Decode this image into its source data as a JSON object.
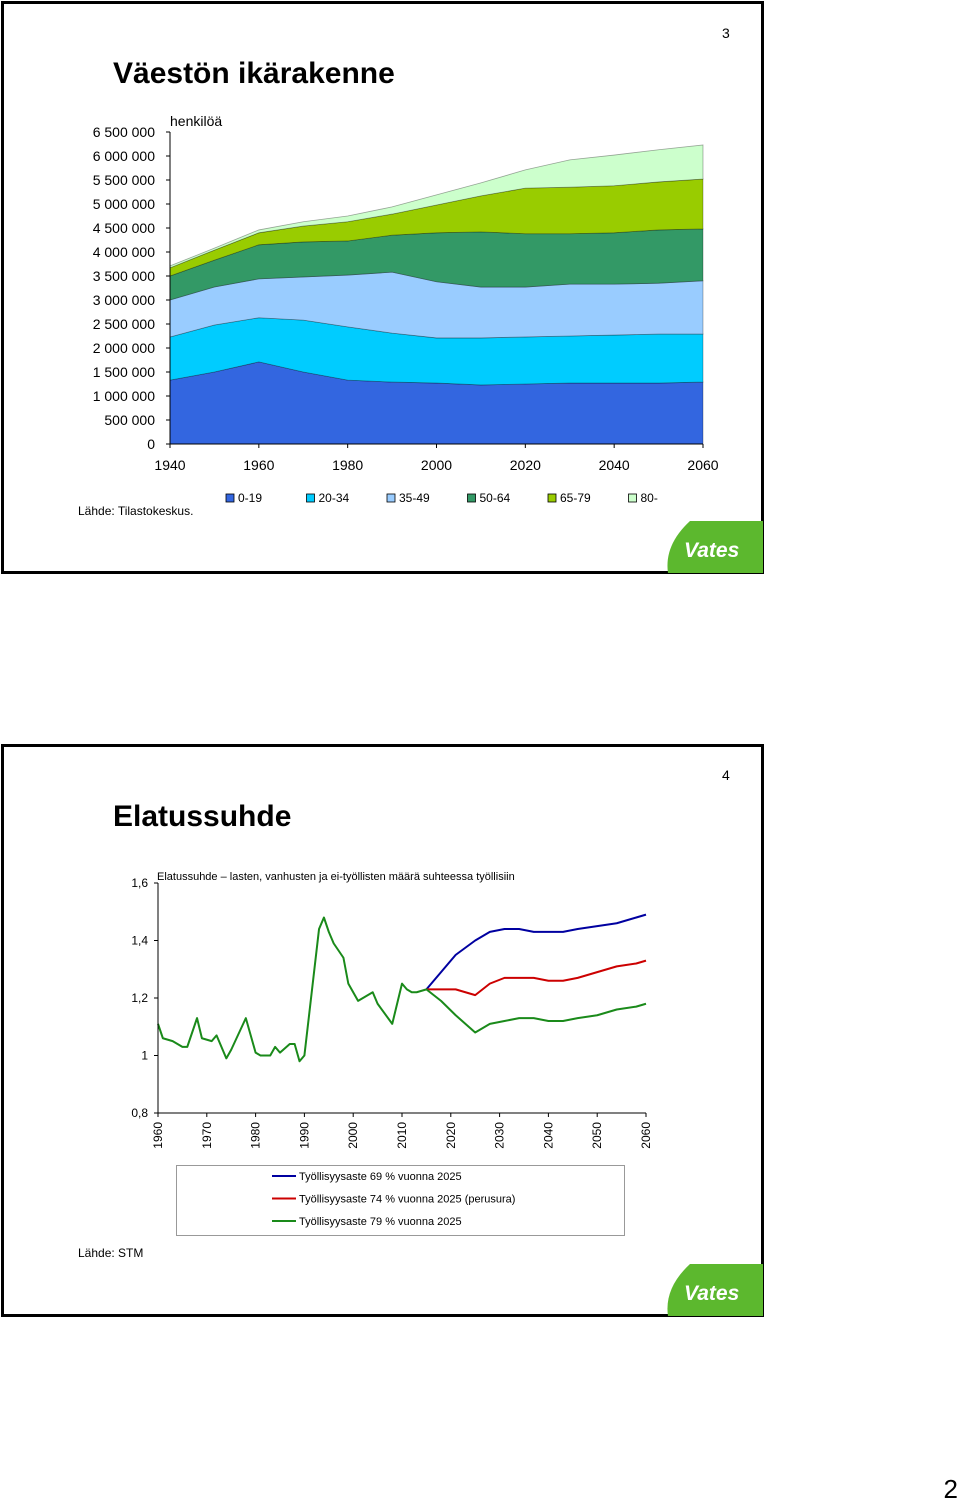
{
  "slides": [
    {
      "number": "3",
      "title": "Väestön ikärakenne",
      "source": "Lähde: Tilastokeskus."
    },
    {
      "number": "4",
      "title": "Elatussuhde",
      "source": "Lähde: STM"
    }
  ],
  "logo_text": "Vates",
  "page_number": "2",
  "chart_data": [
    {
      "type": "area",
      "stacked": true,
      "y_label": "henkilöä",
      "x": [
        1940,
        1950,
        1960,
        1970,
        1980,
        1990,
        2000,
        2010,
        2020,
        2030,
        2040,
        2050,
        2060
      ],
      "xlim": [
        1940,
        2060
      ],
      "xticks": [
        1940,
        1960,
        1980,
        2000,
        2020,
        2040,
        2060
      ],
      "ylim": [
        0,
        6500000
      ],
      "yticks": [
        0,
        {
          "value": 500000,
          "label": "500 000"
        },
        {
          "value": 1000000,
          "label": "1 000 000"
        },
        {
          "value": 1500000,
          "label": "1 500 000"
        },
        {
          "value": 2000000,
          "label": "2 000 000"
        },
        {
          "value": 2500000,
          "label": "2 500 000"
        },
        {
          "value": 3000000,
          "label": "3 000 000"
        },
        {
          "value": 3500000,
          "label": "3 500 000"
        },
        {
          "value": 4000000,
          "label": "4 000 000"
        },
        {
          "value": 4500000,
          "label": "4 500 000"
        },
        {
          "value": 5000000,
          "label": "5 000 000"
        },
        {
          "value": 5500000,
          "label": "5 500 000"
        },
        {
          "value": 6000000,
          "label": "6 000 000"
        },
        {
          "value": 6500000,
          "label": "6 500 000"
        }
      ],
      "grid": false,
      "legend": "bottom",
      "series": [
        {
          "name": "0-19",
          "color": "#3366e0",
          "values": [
            1330000,
            1500000,
            1710000,
            1500000,
            1330000,
            1290000,
            1270000,
            1230000,
            1250000,
            1270000,
            1270000,
            1270000,
            1290000
          ]
        },
        {
          "name": "20-34",
          "color": "#00ccff",
          "values": [
            900000,
            980000,
            920000,
            1080000,
            1110000,
            1020000,
            940000,
            980000,
            980000,
            980000,
            1000000,
            1020000,
            1000000
          ]
        },
        {
          "name": "35-49",
          "color": "#99ccff",
          "values": [
            770000,
            790000,
            810000,
            900000,
            1080000,
            1270000,
            1170000,
            1060000,
            1040000,
            1080000,
            1060000,
            1060000,
            1110000
          ]
        },
        {
          "name": "50-64",
          "color": "#339966",
          "values": [
            500000,
            560000,
            710000,
            730000,
            710000,
            770000,
            1020000,
            1150000,
            1110000,
            1050000,
            1070000,
            1110000,
            1080000
          ]
        },
        {
          "name": "65-79",
          "color": "#99cc00",
          "values": [
            170000,
            210000,
            250000,
            330000,
            400000,
            440000,
            580000,
            750000,
            950000,
            970000,
            980000,
            1000000,
            1040000
          ]
        },
        {
          "name": "80-",
          "color": "#ccffcc",
          "values": [
            40000,
            40000,
            60000,
            90000,
            120000,
            150000,
            210000,
            270000,
            380000,
            570000,
            640000,
            670000,
            710000
          ]
        }
      ]
    },
    {
      "type": "line",
      "title": "Elatussuhde – lasten, vanhusten ja ei-työllisten määrä suhteessa työllisiin",
      "x": [
        1960,
        1961,
        1963,
        1965,
        1966,
        1968,
        1969,
        1971,
        1972,
        1974,
        1975,
        1978,
        1979,
        1980,
        1981,
        1983,
        1984,
        1985,
        1987,
        1988,
        1989,
        1990,
        1993,
        1994,
        1995,
        1996,
        1998,
        1999,
        2001,
        2002,
        2004,
        2005,
        2008,
        2010,
        2011,
        2012,
        2013,
        2015,
        2018,
        2021,
        2025,
        2028,
        2031,
        2034,
        2037,
        2040,
        2043,
        2046,
        2050,
        2054,
        2058,
        2060
      ],
      "xlim": [
        1960,
        2060
      ],
      "xticks": [
        1960,
        1970,
        1980,
        1990,
        2000,
        2010,
        2020,
        2030,
        2040,
        2050,
        2060
      ],
      "ylim": [
        0.8,
        1.6
      ],
      "yticks": [
        {
          "value": 0.8,
          "label": "0,8"
        },
        1,
        {
          "value": 1.2,
          "label": "1,2"
        },
        {
          "value": 1.4,
          "label": "1,4"
        },
        {
          "value": 1.6,
          "label": "1,6"
        }
      ],
      "grid": false,
      "legend": "bottom",
      "series": [
        {
          "name": "Työllisyysaste 69 % vuonna 2025",
          "color": "#0000a0",
          "values": [
            null,
            null,
            null,
            null,
            null,
            null,
            null,
            null,
            null,
            null,
            null,
            null,
            null,
            null,
            null,
            null,
            null,
            null,
            null,
            null,
            null,
            null,
            null,
            null,
            null,
            null,
            null,
            null,
            null,
            null,
            null,
            null,
            null,
            null,
            null,
            null,
            null,
            1.23,
            1.29,
            1.35,
            1.4,
            1.43,
            1.44,
            1.44,
            1.43,
            1.43,
            1.43,
            1.44,
            1.45,
            1.46,
            1.48,
            1.49
          ]
        },
        {
          "name": "Työllisyysaste 74 % vuonna 2025 (perusura)",
          "color": "#cc0000",
          "values": [
            null,
            null,
            null,
            null,
            null,
            null,
            null,
            null,
            null,
            null,
            null,
            null,
            null,
            null,
            null,
            null,
            null,
            null,
            null,
            null,
            null,
            null,
            null,
            null,
            null,
            null,
            null,
            null,
            null,
            null,
            null,
            null,
            null,
            null,
            null,
            null,
            null,
            1.23,
            1.23,
            1.23,
            1.21,
            1.25,
            1.27,
            1.27,
            1.27,
            1.26,
            1.26,
            1.27,
            1.29,
            1.31,
            1.32,
            1.33
          ]
        },
        {
          "name": "Työllisyysaste 79 % vuonna 2025",
          "color": "#1a8a1a",
          "values": [
            1.11,
            1.06,
            1.05,
            1.03,
            1.03,
            1.13,
            1.06,
            1.05,
            1.07,
            0.99,
            1.02,
            1.13,
            1.07,
            1.01,
            1.0,
            1.0,
            1.03,
            1.01,
            1.04,
            1.04,
            0.98,
            1.0,
            1.44,
            1.48,
            1.43,
            1.39,
            1.34,
            1.25,
            1.19,
            1.2,
            1.22,
            1.18,
            1.11,
            1.25,
            1.23,
            1.22,
            1.22,
            1.23,
            1.19,
            1.14,
            1.08,
            1.11,
            1.12,
            1.13,
            1.13,
            1.12,
            1.12,
            1.13,
            1.14,
            1.16,
            1.17,
            1.18
          ]
        }
      ]
    }
  ]
}
